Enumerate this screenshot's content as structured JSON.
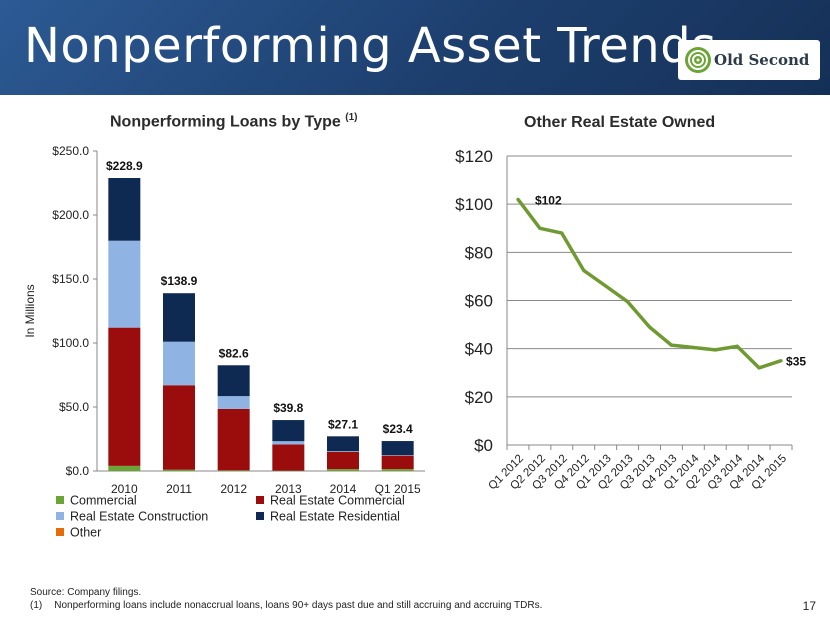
{
  "slide": {
    "title": "Nonperforming Asset Trends",
    "logo_text": "Old Second",
    "page_number": "17",
    "source": "Source: Company filings.",
    "footnote_marker": "(1)",
    "footnote": "Nonperforming loans include nonaccrual loans, loans 90+ days past due and still accruing and accruing TDRs."
  },
  "chart_data": [
    {
      "type": "bar",
      "title": "Nonperforming Loans by Type",
      "title_note": "(1)",
      "ylabel": "In Millions",
      "ylim": [
        0,
        250
      ],
      "yticks": [
        "$0.0",
        "$50.0",
        "$100.0",
        "$150.0",
        "$200.0",
        "$250.0"
      ],
      "categories": [
        "2010",
        "2011",
        "2012",
        "2013",
        "2014",
        "Q1 2015"
      ],
      "totals": [
        "$228.9",
        "$138.9",
        "$82.6",
        "$39.8",
        "$27.1",
        "$23.4"
      ],
      "total_values": [
        228.9,
        138.9,
        82.6,
        39.8,
        27.1,
        23.4
      ],
      "series": [
        {
          "name": "Commercial",
          "color": "#6aa535",
          "values": [
            4.0,
            1.0,
            0.5,
            0.3,
            1.5,
            1.5
          ]
        },
        {
          "name": "Real Estate Commercial",
          "color": "#9b0c0c",
          "values": [
            108.0,
            66.0,
            48.0,
            20.5,
            13.5,
            10.5
          ]
        },
        {
          "name": "Real Estate Construction",
          "color": "#8fb4e3",
          "values": [
            67.9,
            34.0,
            10.0,
            2.5,
            0.5,
            0.4
          ]
        },
        {
          "name": "Real Estate Residential",
          "color": "#0f2a52",
          "values": [
            49.0,
            37.9,
            24.1,
            16.5,
            11.6,
            11.0
          ]
        },
        {
          "name": "Other",
          "color": "#e46c0a",
          "values": [
            0,
            0,
            0,
            0,
            0,
            0
          ]
        }
      ],
      "legend_position": "bottom",
      "stacked": true
    },
    {
      "type": "line",
      "title": "Other Real Estate Owned",
      "ylim": [
        0,
        120
      ],
      "yticks": [
        "$0",
        "$20",
        "$40",
        "$60",
        "$80",
        "$100",
        "$120"
      ],
      "x": [
        "Q1 2012",
        "Q2 2012",
        "Q3 2012",
        "Q4 2012",
        "Q1 2013",
        "Q2 2013",
        "Q3 2013",
        "Q4 2013",
        "Q1 2014",
        "Q2 2014",
        "Q3 2014",
        "Q4 2014",
        "Q1 2015"
      ],
      "series": [
        {
          "color": "#6f9a32",
          "values": [
            102,
            90,
            88,
            72.5,
            66,
            59.5,
            49,
            41.5,
            40.5,
            39.5,
            41,
            32,
            35
          ]
        }
      ],
      "data_labels": [
        {
          "index": 0,
          "text": "$102"
        },
        {
          "index": 12,
          "text": "$35"
        }
      ],
      "grid": true
    }
  ]
}
